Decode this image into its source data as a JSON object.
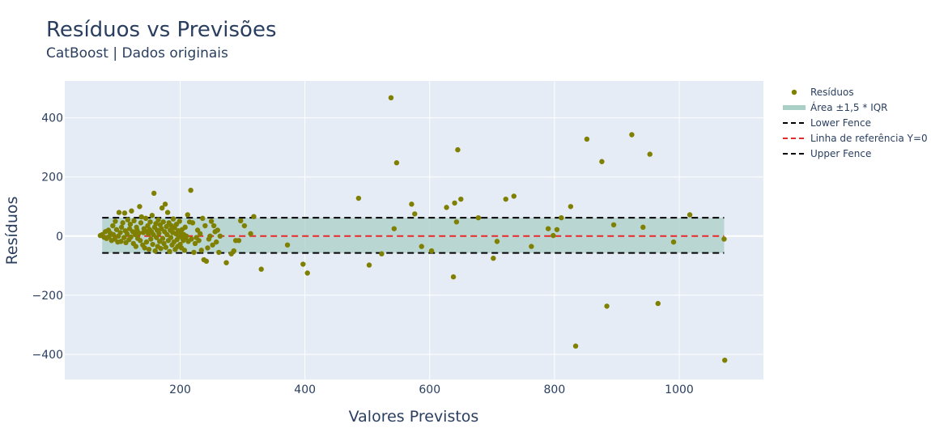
{
  "chart_data": {
    "type": "scatter",
    "title": "Resíduos vs Previsões",
    "subtitle": "CatBoost | Dados originais",
    "xlabel": "Valores Previstos",
    "ylabel": "Resíduos",
    "xlim": [
      15,
      1135
    ],
    "ylim": [
      -485,
      525
    ],
    "xticks": [
      200,
      400,
      600,
      800,
      1000
    ],
    "yticks": [
      -400,
      -200,
      0,
      200,
      400
    ],
    "xtick_labels": [
      "200",
      "400",
      "600",
      "800",
      "1000"
    ],
    "ytick_labels": [
      "−400",
      "−200",
      "0",
      "200",
      "400"
    ],
    "grid": true,
    "legend_position": "top-right",
    "colors": {
      "points": "#808000",
      "band": "#a9cfc6",
      "fence": "#000000",
      "zero_line": "#e8282b",
      "plot_bg": "#e5ecf6",
      "grid": "#ffffff",
      "text": "#2a3f5f"
    },
    "band": {
      "name": "Área ±1,5 * IQR",
      "x_range": [
        75,
        1072
      ],
      "y_range": [
        -57,
        62
      ]
    },
    "lines": [
      {
        "name": "Lower Fence",
        "y": -57,
        "x_range": [
          75,
          1072
        ],
        "style": "dash",
        "color": "#000000"
      },
      {
        "name": "Linha de referência Y=0",
        "y": 0,
        "x_range": [
          75,
          1072
        ],
        "style": "dash",
        "color": "#e8282b"
      },
      {
        "name": "Upper Fence",
        "y": 62,
        "x_range": [
          75,
          1072
        ],
        "style": "dash",
        "color": "#000000"
      }
    ],
    "legend": [
      "Resíduos",
      "Área ±1,5 * IQR",
      "Lower Fence",
      "Linha de referência Y=0",
      "Upper Fence"
    ],
    "series": [
      {
        "name": "Resíduos",
        "points": [
          [
            72,
            2
          ],
          [
            75,
            5
          ],
          [
            78,
            -4
          ],
          [
            80,
            15
          ],
          [
            82,
            -8
          ],
          [
            85,
            20
          ],
          [
            86,
            -2
          ],
          [
            88,
            10
          ],
          [
            90,
            -15
          ],
          [
            92,
            35
          ],
          [
            93,
            5
          ],
          [
            95,
            -10
          ],
          [
            96,
            50
          ],
          [
            98,
            22
          ],
          [
            100,
            -20
          ],
          [
            101,
            0
          ],
          [
            102,
            80
          ],
          [
            104,
            12
          ],
          [
            105,
            -18
          ],
          [
            106,
            30
          ],
          [
            108,
            45
          ],
          [
            110,
            -5
          ],
          [
            111,
            78
          ],
          [
            112,
            18
          ],
          [
            113,
            -22
          ],
          [
            115,
            8
          ],
          [
            116,
            55
          ],
          [
            118,
            -12
          ],
          [
            119,
            25
          ],
          [
            120,
            40
          ],
          [
            121,
            -3
          ],
          [
            122,
            85
          ],
          [
            124,
            15
          ],
          [
            125,
            -25
          ],
          [
            126,
            52
          ],
          [
            128,
            5
          ],
          [
            129,
            -35
          ],
          [
            130,
            30
          ],
          [
            131,
            20
          ],
          [
            132,
            -8
          ],
          [
            134,
            10
          ],
          [
            135,
            100
          ],
          [
            136,
            -15
          ],
          [
            137,
            45
          ],
          [
            138,
            65
          ],
          [
            140,
            -30
          ],
          [
            141,
            12
          ],
          [
            142,
            25
          ],
          [
            143,
            -40
          ],
          [
            144,
            18
          ],
          [
            145,
            60
          ],
          [
            146,
            -20
          ],
          [
            148,
            35
          ],
          [
            149,
            8
          ],
          [
            150,
            -45
          ],
          [
            151,
            22
          ],
          [
            152,
            48
          ],
          [
            153,
            -10
          ],
          [
            154,
            15
          ],
          [
            155,
            70
          ],
          [
            156,
            -28
          ],
          [
            157,
            5
          ],
          [
            158,
            145
          ],
          [
            159,
            30
          ],
          [
            160,
            -50
          ],
          [
            161,
            42
          ],
          [
            162,
            -5
          ],
          [
            163,
            20
          ],
          [
            164,
            -35
          ],
          [
            165,
            55
          ],
          [
            166,
            10
          ],
          [
            167,
            -18
          ],
          [
            168,
            38
          ],
          [
            169,
            -42
          ],
          [
            170,
            25
          ],
          [
            171,
            95
          ],
          [
            172,
            -8
          ],
          [
            173,
            48
          ],
          [
            174,
            -25
          ],
          [
            175,
            15
          ],
          [
            176,
            108
          ],
          [
            177,
            -38
          ],
          [
            178,
            32
          ],
          [
            179,
            5
          ],
          [
            180,
            80
          ],
          [
            181,
            -15
          ],
          [
            182,
            45
          ],
          [
            183,
            -52
          ],
          [
            184,
            20
          ],
          [
            185,
            -5
          ],
          [
            186,
            35
          ],
          [
            187,
            -30
          ],
          [
            188,
            12
          ],
          [
            189,
            58
          ],
          [
            190,
            -20
          ],
          [
            191,
            28
          ],
          [
            192,
            -45
          ],
          [
            193,
            8
          ],
          [
            194,
            40
          ],
          [
            195,
            -12
          ],
          [
            196,
            -35
          ],
          [
            197,
            18
          ],
          [
            198,
            -2
          ],
          [
            199,
            50
          ],
          [
            200,
            -28
          ],
          [
            201,
            10
          ],
          [
            202,
            -40
          ],
          [
            203,
            22
          ],
          [
            204,
            -8
          ],
          [
            205,
            -15
          ],
          [
            206,
            5
          ],
          [
            207,
            -48
          ],
          [
            208,
            30
          ],
          [
            209,
            -5
          ],
          [
            210,
            0
          ],
          [
            212,
            72
          ],
          [
            213,
            -18
          ],
          [
            215,
            48
          ],
          [
            217,
            155
          ],
          [
            218,
            -10
          ],
          [
            220,
            45
          ],
          [
            222,
            -55
          ],
          [
            224,
            -25
          ],
          [
            226,
            -5
          ],
          [
            228,
            20
          ],
          [
            230,
            -15
          ],
          [
            232,
            8
          ],
          [
            234,
            -48
          ],
          [
            236,
            60
          ],
          [
            238,
            -80
          ],
          [
            240,
            35
          ],
          [
            242,
            -85
          ],
          [
            244,
            -40
          ],
          [
            246,
            -10
          ],
          [
            248,
            0
          ],
          [
            250,
            50
          ],
          [
            252,
            -30
          ],
          [
            254,
            35
          ],
          [
            256,
            15
          ],
          [
            258,
            -20
          ],
          [
            260,
            20
          ],
          [
            262,
            -55
          ],
          [
            264,
            0
          ],
          [
            274,
            -90
          ],
          [
            282,
            -60
          ],
          [
            286,
            -50
          ],
          [
            289,
            -15
          ],
          [
            294,
            -15
          ],
          [
            297,
            52
          ],
          [
            303,
            35
          ],
          [
            313,
            8
          ],
          [
            318,
            66
          ],
          [
            330,
            -112
          ],
          [
            372,
            -30
          ],
          [
            397,
            -95
          ],
          [
            404,
            -125
          ],
          [
            486,
            128
          ],
          [
            503,
            -98
          ],
          [
            523,
            -60
          ],
          [
            538,
            468
          ],
          [
            543,
            25
          ],
          [
            547,
            248
          ],
          [
            571,
            108
          ],
          [
            576,
            75
          ],
          [
            587,
            -35
          ],
          [
            603,
            -50
          ],
          [
            627,
            97
          ],
          [
            638,
            -138
          ],
          [
            640,
            112
          ],
          [
            643,
            48
          ],
          [
            645,
            292
          ],
          [
            650,
            125
          ],
          [
            678,
            62
          ],
          [
            702,
            -75
          ],
          [
            708,
            -18
          ],
          [
            722,
            125
          ],
          [
            735,
            135
          ],
          [
            763,
            -35
          ],
          [
            790,
            25
          ],
          [
            798,
            2
          ],
          [
            804,
            22
          ],
          [
            811,
            62
          ],
          [
            826,
            100
          ],
          [
            834,
            -372
          ],
          [
            852,
            328
          ],
          [
            876,
            252
          ],
          [
            884,
            -237
          ],
          [
            895,
            38
          ],
          [
            924,
            343
          ],
          [
            942,
            30
          ],
          [
            953,
            277
          ],
          [
            966,
            -228
          ],
          [
            991,
            -20
          ],
          [
            1017,
            72
          ],
          [
            1072,
            -10
          ],
          [
            1073,
            -420
          ]
        ]
      }
    ]
  }
}
